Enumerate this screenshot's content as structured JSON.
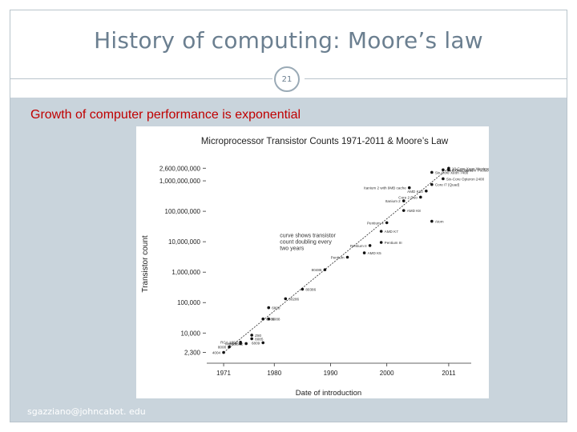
{
  "slide": {
    "title": "History of computing: Moore’s law",
    "number": "21",
    "subtitle": "Growth of computer performance is exponential",
    "footer": "sgazziano@johncabot. edu"
  },
  "chart_data": {
    "type": "scatter",
    "title": "Microprocessor Transistor Counts 1971-2011 & Moore’s Law",
    "xlabel": "Date of introduction",
    "ylabel": "Transistor count",
    "xlim": [
      1968,
      2015
    ],
    "ylim": [
      1300,
      10000000000
    ],
    "y_scale": "log",
    "x_ticks": [
      1971,
      1980,
      1990,
      2000,
      2011
    ],
    "x_tick_labels": [
      "1971",
      "1980",
      "1990",
      "2000",
      "2011"
    ],
    "y_ticks": [
      2300,
      10000,
      100000,
      1000000,
      10000000,
      100000000,
      1000000000,
      2600000000
    ],
    "y_tick_labels": [
      "2,300",
      "10,000",
      "100,000",
      "1,000,000",
      "10,000,000",
      "100,000,000",
      "1,000,000,000",
      "2,600,000,000"
    ],
    "trend_annotation": "curve shows transistor count doubling every two years",
    "trend": {
      "x": [
        1971,
        2011
      ],
      "y": [
        2300,
        2600000000
      ]
    },
    "points": [
      {
        "x": 1971,
        "y": 2300,
        "label": "4004"
      },
      {
        "x": 1972,
        "y": 3500,
        "label": "8008"
      },
      {
        "x": 1974,
        "y": 4500,
        "label": "8080"
      },
      {
        "x": 1974,
        "y": 5000,
        "label": "RCA 1802"
      },
      {
        "x": 1975,
        "y": 4500,
        "label": "MOS 6502"
      },
      {
        "x": 1976,
        "y": 8500,
        "label": "Z80"
      },
      {
        "x": 1976,
        "y": 6500,
        "label": "8085"
      },
      {
        "x": 1978,
        "y": 29000,
        "label": "8086"
      },
      {
        "x": 1979,
        "y": 68000,
        "label": "6800"
      },
      {
        "x": 1978,
        "y": 4800,
        "label": "6809"
      },
      {
        "x": 1979,
        "y": 29000,
        "label": "8088"
      },
      {
        "x": 1982,
        "y": 134000,
        "label": "80286"
      },
      {
        "x": 1985,
        "y": 275000,
        "label": "80386"
      },
      {
        "x": 1989,
        "y": 1200000,
        "label": "80486"
      },
      {
        "x": 1993,
        "y": 3100000,
        "label": "Pentium"
      },
      {
        "x": 1996,
        "y": 4300000,
        "label": "AMD K5"
      },
      {
        "x": 1997,
        "y": 7500000,
        "label": "Pentium II"
      },
      {
        "x": 1999,
        "y": 9500000,
        "label": "Pentium III"
      },
      {
        "x": 1999,
        "y": 22000000,
        "label": "AMD K7"
      },
      {
        "x": 2000,
        "y": 42000000,
        "label": "Pentium 4"
      },
      {
        "x": 2003,
        "y": 105900000,
        "label": "AMD K8"
      },
      {
        "x": 2003,
        "y": 220000000,
        "label": "Itanium 2"
      },
      {
        "x": 2004,
        "y": 592000000,
        "label": "Itanium 2 with 9MB cache"
      },
      {
        "x": 2006,
        "y": 291000000,
        "label": "Core 2 Duo"
      },
      {
        "x": 2007,
        "y": 463000000,
        "label": "AMD K10"
      },
      {
        "x": 2008,
        "y": 758000000,
        "label": "Core i7 (Quad)"
      },
      {
        "x": 2008,
        "y": 1900000000,
        "label": "Six-Core Xeon 7400"
      },
      {
        "x": 2010,
        "y": 2300000000,
        "label": "Six-Core Core i7"
      },
      {
        "x": 2011,
        "y": 2600000000,
        "label": "10-Core Xeon Westmere-EX"
      },
      {
        "x": 2008,
        "y": 47000000,
        "label": "Atom"
      },
      {
        "x": 2010,
        "y": 1170000000,
        "label": "Six-Core Opteron 2400"
      },
      {
        "x": 2011,
        "y": 2270000000,
        "label": "8-Core Itanium Poulson"
      }
    ]
  }
}
